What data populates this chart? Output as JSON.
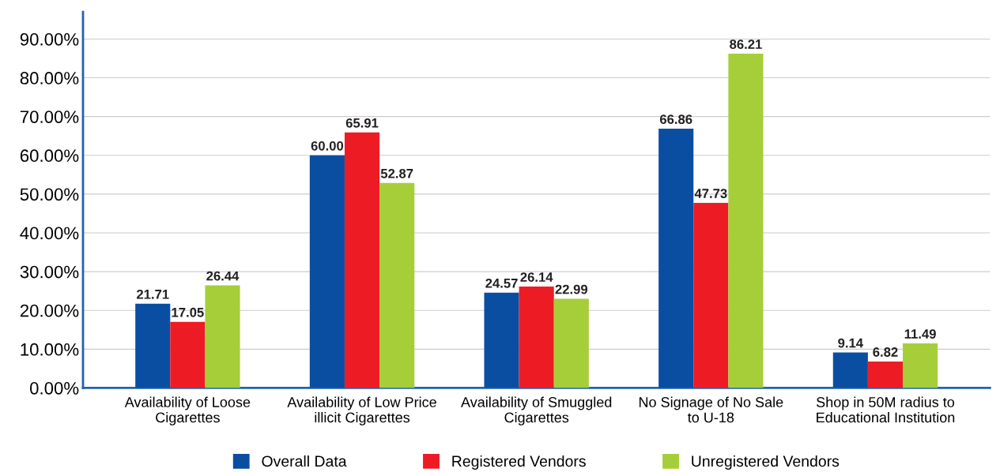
{
  "chart_data": {
    "type": "bar",
    "categories": [
      "Availability of Loose\nCigarettes",
      "Availability of Low Price\nillicit Cigarettes",
      "Availability of Smuggled\nCigarettes",
      "No Signage of No Sale\nto U-18",
      "Shop in 50M radius to\nEducational Institution"
    ],
    "series": [
      {
        "name": "Overall Data",
        "color": "#0a4ea2",
        "values": [
          21.71,
          60.0,
          24.57,
          66.86,
          9.14
        ],
        "value_labels": [
          "21.71",
          "60.00",
          "24.57",
          "66.86",
          "9.14"
        ]
      },
      {
        "name": "Registered Vendors",
        "color": "#ed1c24",
        "values": [
          17.05,
          65.91,
          26.14,
          47.73,
          6.82
        ],
        "value_labels": [
          "17.05",
          "65.91",
          "26.14",
          "47.73",
          "6.82"
        ]
      },
      {
        "name": "Unregistered Vendors",
        "color": "#a6ce39",
        "values": [
          26.44,
          52.87,
          22.99,
          86.21,
          11.49
        ],
        "value_labels": [
          "26.44",
          "52.87",
          "22.99",
          "86.21",
          "11.49"
        ]
      }
    ],
    "ylim": [
      0,
      97
    ],
    "yticks": [
      {
        "value": 0,
        "label": "0.00%"
      },
      {
        "value": 10,
        "label": "10.00%"
      },
      {
        "value": 20,
        "label": "20.00%"
      },
      {
        "value": 30,
        "label": "30.00%"
      },
      {
        "value": 40,
        "label": "40.00%"
      },
      {
        "value": 50,
        "label": "50.00%"
      },
      {
        "value": 60,
        "label": "60.00%"
      },
      {
        "value": 70,
        "label": "70.00%"
      },
      {
        "value": 80,
        "label": "80.00%"
      },
      {
        "value": 90,
        "label": "90.00%"
      }
    ],
    "grid": "y",
    "legend": "bottom"
  }
}
